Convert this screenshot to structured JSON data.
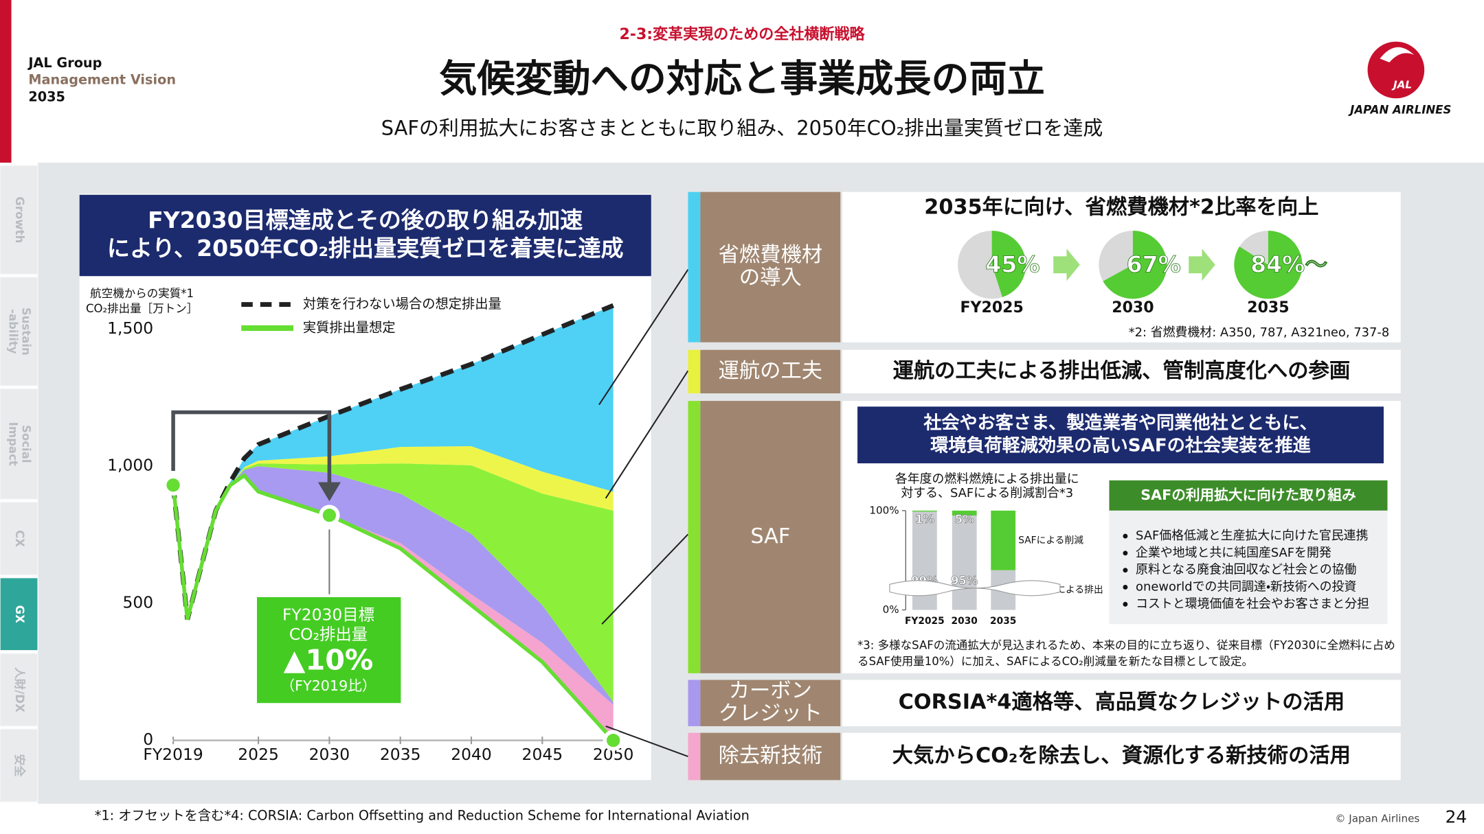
{
  "header": {
    "section": "2-3:変革実現のための全社横断戦略",
    "title": "気候変動への対応と事業成長の両立",
    "subtitle": "SAFの利用拡大にお客さまとともに取り組み、2050年CO₂排出量実質ゼロを達成",
    "brand": [
      "JAL Group",
      "Management Vision",
      "2035"
    ],
    "logo": {
      "mark": "JAL",
      "name": "JAPAN AIRLINES"
    }
  },
  "sidebar": {
    "tabs": [
      [
        "Growth"
      ],
      [
        "Sustain",
        "-ability"
      ],
      [
        "Social",
        "Impact"
      ],
      [
        "CX"
      ],
      [
        "GX"
      ],
      [
        "人財/DX"
      ],
      [
        "安全"
      ]
    ],
    "active": 4
  },
  "chart_data": [
    {
      "type": "area",
      "title": [
        "FY2030目標達成とその後の取り組み加速",
        "により、2050年CO₂排出量実質ゼロを着実に達成"
      ],
      "ylabel": [
        "航空機からの実質*1",
        "CO₂排出量［万トン］"
      ],
      "x": [
        2019,
        2020,
        2021,
        2022,
        2023,
        2024,
        2025,
        2030,
        2035,
        2040,
        2045,
        2050
      ],
      "series": [
        {
          "name": "対策を行わない場合の想定排出量",
          "color": "#222222",
          "dashed": true,
          "values": [
            931,
            441,
            640,
            838,
            941,
            1028,
            1079,
            1183,
            1280,
            1372,
            1480,
            1586
          ]
        },
        {
          "name": "実質排出量想定",
          "color": "#66dd33",
          "values": [
            931,
            441,
            640,
            838,
            930,
            966,
            907,
            821,
            700,
            493,
            286,
            0
          ]
        },
        {
          "color": "#f5a3cf",
          "stack": true,
          "values": [
            0,
            0,
            0,
            0,
            0,
            0,
            0,
            0,
            20,
            40,
            70,
            130
          ]
        },
        {
          "color": "#a79af0",
          "stack": true,
          "values": [
            0,
            0,
            0,
            0,
            0,
            20,
            93,
            155,
            180,
            220,
            137,
            10
          ]
        },
        {
          "color": "#8cf03a",
          "stack": true,
          "values": [
            0,
            0,
            0,
            0,
            0,
            5,
            10,
            30,
            110,
            250,
            407,
            698
          ]
        },
        {
          "color": "#eef54a",
          "stack": true,
          "values": [
            0,
            0,
            0,
            0,
            0,
            5,
            10,
            30,
            60,
            70,
            80,
            69
          ]
        },
        {
          "color": "#4fd0f5",
          "stack": true,
          "values": [
            0,
            0,
            0,
            0,
            11,
            32,
            59,
            147,
            210,
            299,
            500,
            679
          ]
        }
      ],
      "markers": [
        0,
        7,
        11
      ],
      "xlim": [
        2019,
        2050
      ],
      "xticks": [
        {
          "value": 2019,
          "label": "FY2019"
        },
        2025,
        2030,
        2035,
        2040,
        2045,
        2050
      ],
      "ylim": [
        0,
        1600
      ],
      "yticks": [
        0,
        500,
        {
          "value": 1000,
          "label": "1,000"
        },
        {
          "value": 1500,
          "label": "1,500"
        }
      ],
      "annotation": [
        "FY2030目標",
        "CO₂排出量",
        "▲10%",
        "（FY2019比）"
      ]
    },
    {
      "type": "donut",
      "title": "2035年に向け、省燃費機材*2比率を向上",
      "categories": [
        "FY2025",
        "2030",
        "2035"
      ],
      "values": [
        45,
        67,
        84
      ],
      "value_labels": [
        "45%",
        "67%",
        "84%～"
      ],
      "color": "#55cc33",
      "track_color": "#d9d9d9",
      "note": "*2: 省燃費機材: A350, 787, A321neo, 737-8"
    },
    {
      "type": "bar",
      "stacked": true,
      "title": [
        "各年度の燃料燃焼による排出量に",
        "対する、SAFによる削減割合*3"
      ],
      "categories": [
        "FY2025",
        "2030",
        "2035"
      ],
      "series": [
        {
          "name": "燃料燃焼による排出",
          "color": "#c8ccd0",
          "values": [
            99,
            95,
            40
          ],
          "value_labels": [
            "99%",
            "95%",
            null
          ]
        },
        {
          "name": "SAFによる削減",
          "color": "#55cc33",
          "values": [
            1,
            5,
            60
          ],
          "value_labels": [
            "1%",
            "5%",
            null
          ]
        }
      ],
      "ylim": [
        0,
        100
      ],
      "yticks": [
        {
          "value": 0,
          "label": "0%"
        },
        {
          "value": 100,
          "label": "100%"
        }
      ]
    }
  ],
  "rows": [
    {
      "label": [
        "省燃費機材",
        "の導入"
      ],
      "color": "#4dd0f0"
    },
    {
      "label": [
        "運航の工夫"
      ],
      "color": "#e8f040",
      "text": "運航の工夫による排出低減、管制高度化への参画"
    },
    {
      "label": [
        "SAF"
      ],
      "color": "#88e030"
    },
    {
      "label": [
        "カーボン",
        "クレジット"
      ],
      "color": "#a899ee",
      "text": "CORSIA*4適格等、高品質なクレジットの活用"
    },
    {
      "label": [
        "除去新技術"
      ],
      "color": "#f4a6cc",
      "text": "大気からCO₂を除去し、資源化する新技術の活用"
    }
  ],
  "saf": {
    "headline": [
      "社会やお客さま、製造業者や同業他社とともに、",
      "環境負荷軽減効果の高いSAFの社会実装を推進"
    ],
    "box_title": "SAFの利用拡大に向けた取り組み",
    "bullets": [
      "SAF価格低減と生産拡大に向けた官民連携",
      "企業や地域と共に純国産SAFを開発",
      "原料となる廃食油回収など社会との協働",
      "oneworldでの共同調達・新技術への投資",
      "コストと環境価値を社会やお客さまと分担"
    ],
    "note": [
      "*3: 多様なSAFの流通拡大が見込まれるため、本来の目的に立ち返り、従来目標（FY2030に全燃料に占め",
      "るSAF使用量10%）に加え、SAFによるCO₂削減量を新たな目標として設定。"
    ]
  },
  "footer": {
    "notes": [
      "*1: オフセットを含む",
      "*4: CORSIA: Carbon Offsetting and Reduction Scheme for International Aviation"
    ],
    "copyright": "© Japan Airlines",
    "page": 24
  }
}
